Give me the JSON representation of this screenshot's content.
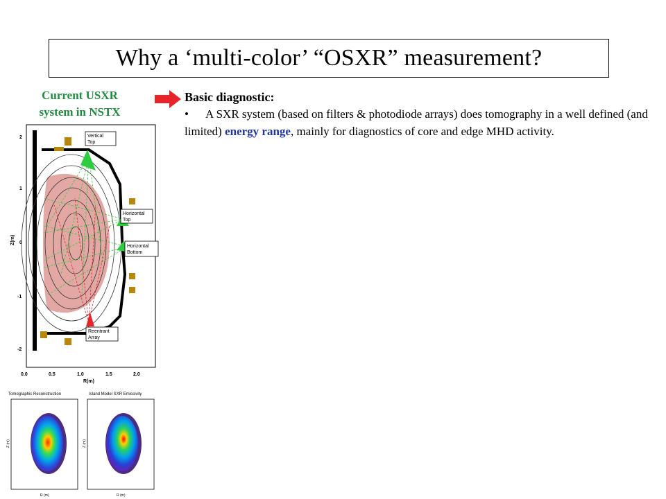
{
  "title": "Why a ‘multi-color’ “OSXR” measurement?",
  "caption": {
    "line1": "Current USXR",
    "line2": "system in NSTX"
  },
  "section": {
    "heading": "Basic diagnostic:",
    "bullet_symbol": "•",
    "bullet_part1": "A SXR system (based on filters & photodiode arrays) does tomography in a well defined (and limited) ",
    "bullet_highlight": "energy range",
    "bullet_part2": ", mainly for diagnostics of core and edge MHD activity."
  },
  "colors": {
    "caption": "#1e8e3e",
    "highlight": "#1f35a8",
    "arrow": "#e8232a"
  },
  "figure_nstx": {
    "labels": {
      "vertical_top_1": "Vertical",
      "vertical_top_2": "Top",
      "horizontal_top_1": "Horizontal",
      "horizontal_top_2": "Top",
      "horizontal_bottom_1": "Horizontal",
      "horizontal_bottom_2": "Bottom",
      "reentrant_1": "Reentrant",
      "reentrant_2": "Array"
    },
    "ylabel": "Z(m)",
    "xlabel": "R(m)",
    "y_ticks": [
      "2",
      "1",
      "0",
      "-1",
      "-2"
    ],
    "x_ticks": [
      "0.0",
      "0.5",
      "1.0",
      "1.5",
      "2.0"
    ]
  },
  "figure_reconstruction": {
    "left_title": "Tomographic Reconstruction",
    "right_title": "Island Model SXR Emissivity",
    "xlabel": "R (m)",
    "ylabel": "Z (m)"
  }
}
